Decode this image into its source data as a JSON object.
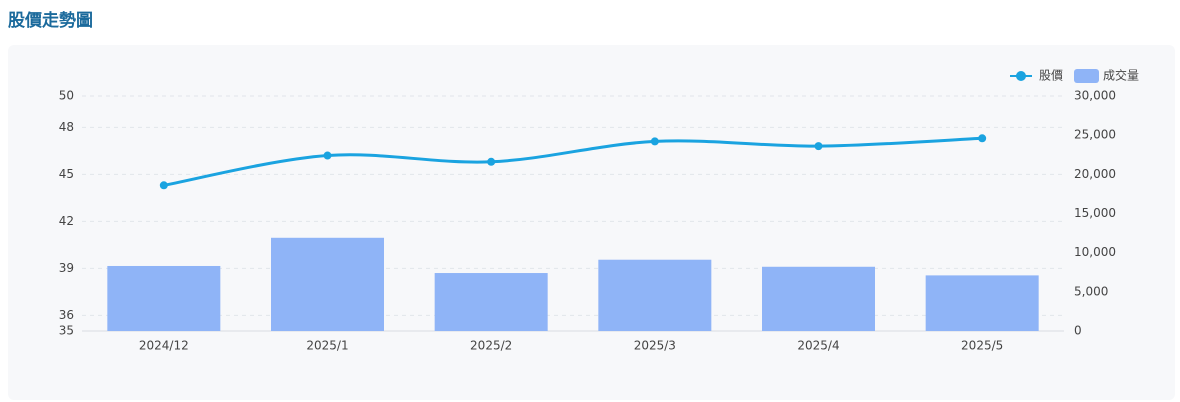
{
  "chart_data": {
    "type": "combo",
    "title": "股價走勢圖",
    "categories": [
      "2024/12",
      "2025/1",
      "2025/2",
      "2025/3",
      "2025/4",
      "2025/5"
    ],
    "series": [
      {
        "name": "股價",
        "type": "line",
        "color": "#1aa3e0",
        "values": [
          44.3,
          46.2,
          45.8,
          47.1,
          46.8,
          47.3
        ]
      },
      {
        "name": "成交量",
        "type": "bar",
        "axis": "y2",
        "color": "#8fb4f7",
        "values": [
          8300,
          11900,
          7400,
          9100,
          8200,
          7100
        ]
      }
    ],
    "ylim": [
      35,
      50
    ],
    "yticks": [
      35,
      36,
      39,
      42,
      45,
      48,
      50
    ],
    "y2lim": [
      0,
      30000
    ],
    "y2ticks": [
      0,
      {
        "value": 5000,
        "label": "5,000"
      },
      {
        "value": 10000,
        "label": "10,000"
      },
      {
        "value": 15000,
        "label": "15,000"
      },
      {
        "value": 20000,
        "label": "20,000"
      },
      {
        "value": 25000,
        "label": "25,000"
      },
      {
        "value": 30000,
        "label": "30,000"
      }
    ],
    "grid": true,
    "legend": "top-right"
  }
}
